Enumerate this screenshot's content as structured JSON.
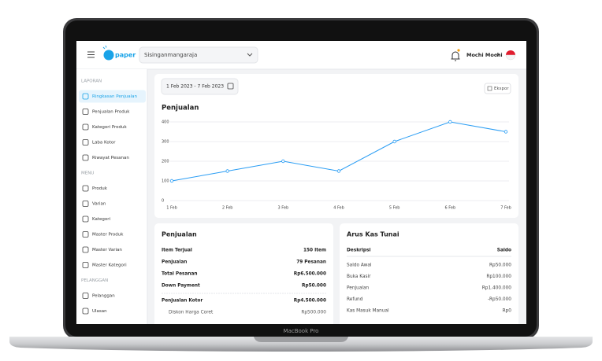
{
  "device_label": "MacBook Pro",
  "header": {
    "logo": "paper",
    "store": "Sisinganmangaraja",
    "user": "Mochi Mochi"
  },
  "sidebar": {
    "sections": [
      {
        "title": "LAPORAN",
        "items": [
          {
            "label": "Ringkasan Penjualan",
            "active": true
          },
          {
            "label": "Penjualan Produk"
          },
          {
            "label": "Kategori Produk"
          },
          {
            "label": "Laba Kotor"
          },
          {
            "label": "Riwayat Pesanan"
          }
        ]
      },
      {
        "title": "MENU",
        "items": [
          {
            "label": "Produk"
          },
          {
            "label": "Varian"
          },
          {
            "label": "Kategori"
          },
          {
            "label": "Master Produk"
          },
          {
            "label": "Master Varian"
          },
          {
            "label": "Master Kategori"
          }
        ]
      },
      {
        "title": "PELANGGAN",
        "items": [
          {
            "label": "Pelanggan"
          },
          {
            "label": "Ulasan"
          }
        ]
      }
    ]
  },
  "date_range": "1 Feb 2023 - 7 Feb 2023",
  "export": "Ekspor",
  "chart_data": {
    "type": "line",
    "title": "Penjualan",
    "categories": [
      "1 Feb",
      "2 Feb",
      "3 Feb",
      "4 Feb",
      "5 Feb",
      "6 Feb",
      "7 Feb"
    ],
    "values": [
      100,
      150,
      200,
      150,
      300,
      400,
      350
    ],
    "color": "#2a9df4",
    "ylim": [
      0,
      400
    ],
    "yticks": [
      0,
      100,
      200,
      300,
      400
    ],
    "grid": true
  },
  "sales_summary": {
    "title": "Penjualan",
    "rows": [
      [
        "Item Terjual",
        "150 Item"
      ],
      [
        "Penjualan",
        "79 Pesanan"
      ],
      [
        "Total Pesanan",
        "Rp6.500.000"
      ],
      [
        "Down Payment",
        "Rp50.000"
      ],
      [
        "Penjualan Kotor",
        "Rp4.500.000"
      ],
      [
        "Diskon Harga Coret",
        "Rp500.000"
      ]
    ]
  },
  "cash_flow": {
    "title": "Arus Kas Tunai",
    "columns": [
      "Deskripsi",
      "Saldo"
    ],
    "rows": [
      [
        "Saldo Awal",
        "Rp50.000"
      ],
      [
        "Buka Kasir",
        "Rp100.000"
      ],
      [
        "Penjualan",
        "Rp1.400.000"
      ],
      [
        "Refund",
        "-Rp50.000"
      ],
      [
        "Kas Masuk Manual",
        "Rp0"
      ]
    ]
  }
}
